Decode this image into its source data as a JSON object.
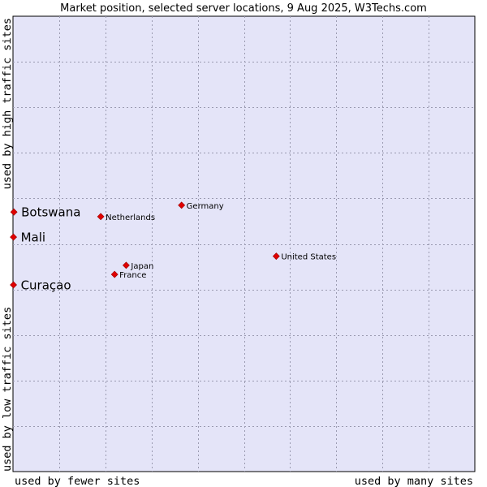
{
  "chart_data": {
    "type": "scatter",
    "title": "Market position, selected server locations, 9 Aug 2025, W3Techs.com",
    "xlabel_left": "used by fewer sites",
    "xlabel_right": "used by many sites",
    "ylabel_bottom": "used by low traffic sites",
    "ylabel_top": "used by high traffic sites",
    "xlim": [
      0,
      100
    ],
    "ylim": [
      0,
      100
    ],
    "grid": true,
    "colors": {
      "plot_bg": "#e4e4f8",
      "point": "#e00000",
      "point_edge": "#990000",
      "border": "#000000"
    },
    "points": [
      {
        "label": "Botswana",
        "x": 0.2,
        "y": 57.0,
        "emphasis": true
      },
      {
        "label": "Mali",
        "x": 0.1,
        "y": 51.5,
        "emphasis": true
      },
      {
        "label": "Curaçao",
        "x": 0.1,
        "y": 41.0,
        "emphasis": true
      },
      {
        "label": "Netherlands",
        "x": 19.0,
        "y": 56.0,
        "emphasis": false
      },
      {
        "label": "Germany",
        "x": 36.5,
        "y": 58.5,
        "emphasis": false
      },
      {
        "label": "Japan",
        "x": 24.5,
        "y": 45.3,
        "emphasis": false
      },
      {
        "label": "France",
        "x": 22.0,
        "y": 43.3,
        "emphasis": false
      },
      {
        "label": "United States",
        "x": 57.0,
        "y": 47.3,
        "emphasis": false
      }
    ]
  }
}
